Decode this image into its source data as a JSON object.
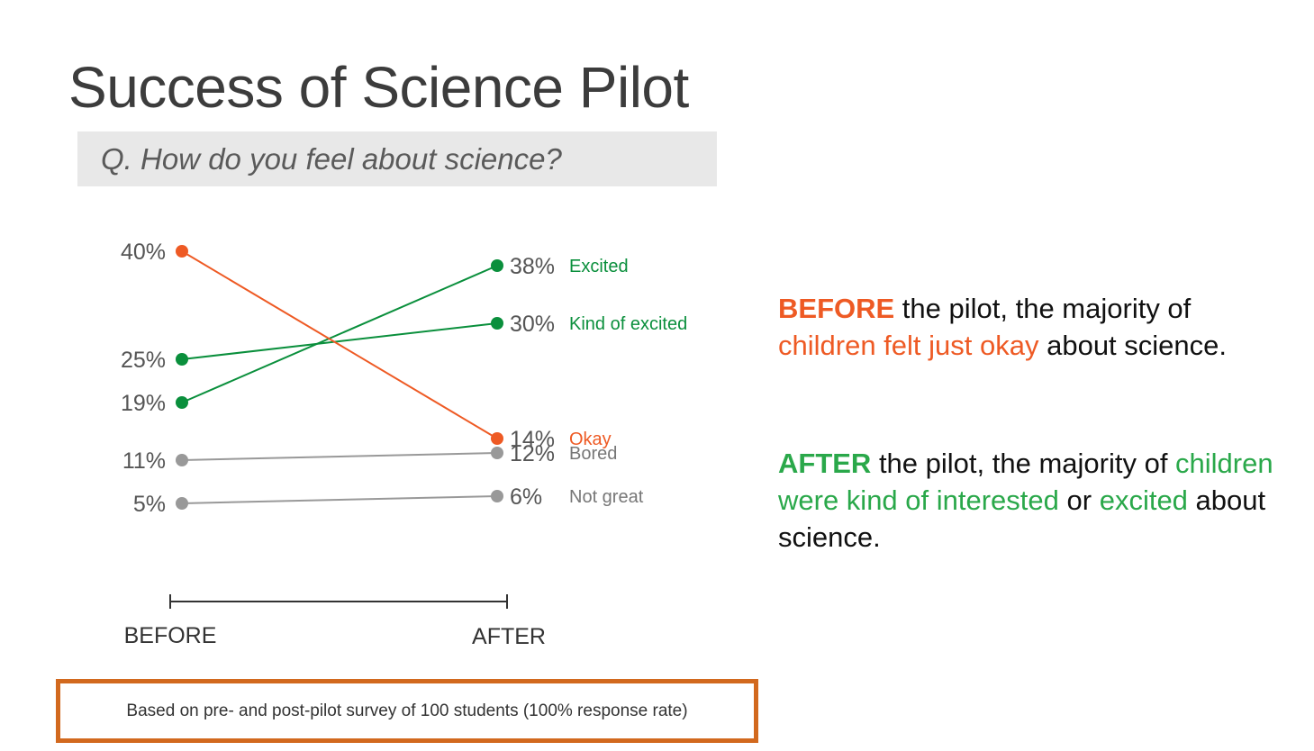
{
  "title": "Success of Science Pilot",
  "question": "Q.  How do you feel about science?",
  "colors": {
    "orange": "#ee5a24",
    "green": "#0a8f3c",
    "green_text": "#2aa84a",
    "gray": "#999999",
    "footnote_border": "#d2691e"
  },
  "chart_data": {
    "type": "line",
    "x": [
      "BEFORE",
      "AFTER"
    ],
    "series": [
      {
        "name": "Excited",
        "values": [
          19,
          38
        ],
        "color": "#0a8f3c",
        "before_label": "19%",
        "after_label": "38%"
      },
      {
        "name": "Kind of excited",
        "values": [
          25,
          30
        ],
        "color": "#0a8f3c",
        "before_label": "25%",
        "after_label": "30%"
      },
      {
        "name": "Okay",
        "values": [
          40,
          14
        ],
        "color": "#ee5a24",
        "before_label": "40%",
        "after_label": "14%"
      },
      {
        "name": "Bored",
        "values": [
          11,
          12
        ],
        "color": "#999999",
        "before_label": "11%",
        "after_label": "12%"
      },
      {
        "name": "Not great",
        "values": [
          5,
          6
        ],
        "color": "#999999",
        "before_label": "5%",
        "after_label": "6%"
      }
    ],
    "ylabel": "",
    "grid": false,
    "legend": "inline-right"
  },
  "summary": {
    "before": {
      "kw": "BEFORE",
      "t1": " the pilot, the majority of ",
      "hl1": "children felt just okay",
      "t2": " about science."
    },
    "after": {
      "kw": "AFTER",
      "t1": " the pilot, the majority of ",
      "hl1": "children were kind of interested",
      "t2": " or ",
      "hl2": "excited",
      "t3": " about science."
    }
  },
  "footnote": "Based on pre- and post-pilot survey of 100 students (100% response rate)"
}
